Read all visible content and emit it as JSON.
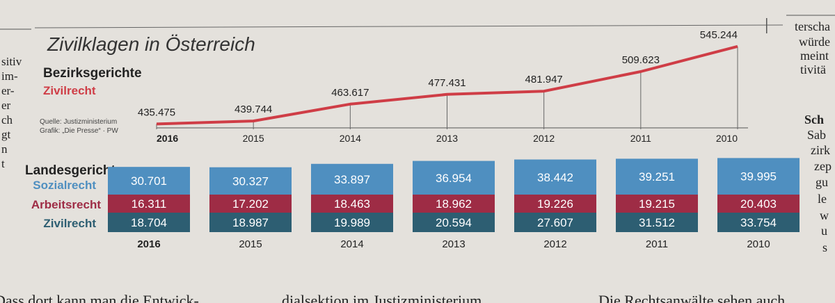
{
  "newspaper": {
    "left_column": [
      "sitiv",
      "im-",
      "er-",
      "er",
      "ch",
      "gt",
      "n",
      "t"
    ],
    "right_column": [
      "terscha",
      "würde",
      "meint",
      "tivitä",
      "Sch",
      "Sab",
      "zirk",
      "zep",
      "gu",
      "le",
      "w",
      "u",
      "s"
    ],
    "bottom_line_1": "Dass dort kann man die Entwick-",
    "bottom_line_2": "dialsektion im Justizministerium",
    "bottom_line_3": "Die Rechtsanwälte sehen auch"
  },
  "chart_data": [
    {
      "type": "line",
      "title": "Zivilklagen in Österreich",
      "subtitle": "Bezirksgerichte",
      "series_label": "Zivilrecht",
      "series_color": "#cf3d46",
      "source": "Quelle: Justizministerium",
      "credit": "Grafik: „Die Presse“ · PW",
      "categories": [
        "2016",
        "2015",
        "2014",
        "2013",
        "2012",
        "2011",
        "2010"
      ],
      "values": [
        435475,
        439744,
        463617,
        477431,
        481947,
        509623,
        545244
      ],
      "labels": [
        "435.475",
        "439.744",
        "463.617",
        "477.431",
        "481.947",
        "509.623",
        "545.244"
      ],
      "ylim": [
        430000,
        550000
      ]
    },
    {
      "type": "bar",
      "title": "Landesgerichte",
      "categories": [
        "2016",
        "2015",
        "2014",
        "2013",
        "2012",
        "2011",
        "2010"
      ],
      "series": [
        {
          "name": "Sozialrecht",
          "color": "#4f8fc0",
          "values": [
            30701,
            30327,
            33897,
            36954,
            38442,
            39251,
            39995
          ],
          "labels": [
            "30.701",
            "30.327",
            "33.897",
            "36.954",
            "38.442",
            "39.251",
            "39.995"
          ]
        },
        {
          "name": "Arbeitsrecht",
          "color": "#9e2c45",
          "values": [
            16311,
            17202,
            18463,
            18962,
            19226,
            19215,
            20403
          ],
          "labels": [
            "16.311",
            "17.202",
            "18.463",
            "18.962",
            "19.226",
            "19.215",
            "20.403"
          ]
        },
        {
          "name": "Zivilrecht",
          "color": "#2d5e72",
          "values": [
            18704,
            18987,
            19989,
            20594,
            27607,
            31512,
            33754
          ],
          "labels": [
            "18.704",
            "18.987",
            "19.989",
            "20.594",
            "27.607",
            "31.512",
            "33.754"
          ]
        }
      ]
    }
  ]
}
